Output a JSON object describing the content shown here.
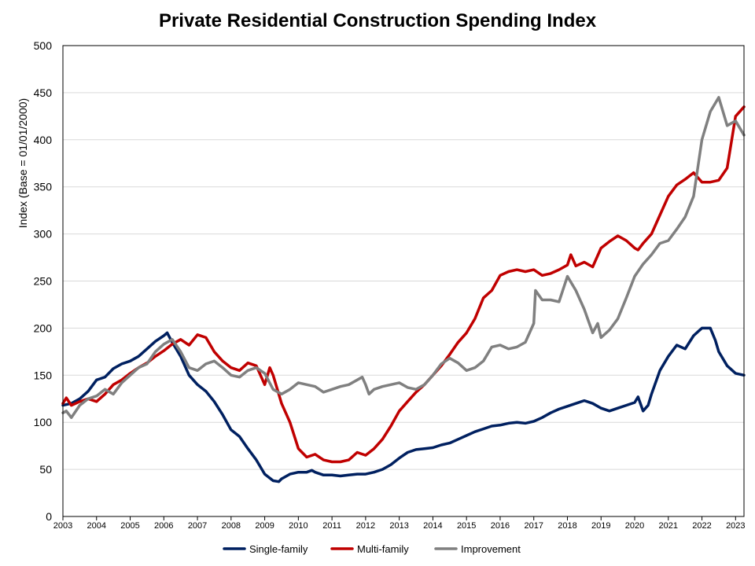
{
  "chart_data": {
    "type": "line",
    "title": "Private Residential Construction Spending Index",
    "ylabel": "Index  (Base = 01/01/2000)",
    "xlabel": "",
    "ylim": [
      0,
      500
    ],
    "yticks": [
      0,
      50,
      100,
      150,
      200,
      250,
      300,
      350,
      400,
      450,
      500
    ],
    "xlim": [
      2003.0,
      2023.25
    ],
    "xticks": [
      "2003",
      "2004",
      "2005",
      "2006",
      "2007",
      "2008",
      "2009",
      "2010",
      "2011",
      "2012",
      "2013",
      "2014",
      "2015",
      "2016",
      "2017",
      "2018",
      "2019",
      "2020",
      "2021",
      "2022",
      "2023"
    ],
    "grid": true,
    "legend_position": "bottom-center",
    "series": [
      {
        "name": "Single-family",
        "color": "#002060",
        "x": [
          2003.0,
          2003.25,
          2003.5,
          2003.75,
          2004.0,
          2004.25,
          2004.5,
          2004.75,
          2005.0,
          2005.25,
          2005.5,
          2005.75,
          2006.0,
          2006.1,
          2006.25,
          2006.5,
          2006.75,
          2007.0,
          2007.25,
          2007.5,
          2007.75,
          2008.0,
          2008.25,
          2008.5,
          2008.75,
          2009.0,
          2009.25,
          2009.42,
          2009.5,
          2009.75,
          2010.0,
          2010.25,
          2010.4,
          2010.5,
          2010.75,
          2011.0,
          2011.25,
          2011.5,
          2011.75,
          2012.0,
          2012.25,
          2012.5,
          2012.75,
          2013.0,
          2013.25,
          2013.5,
          2013.75,
          2014.0,
          2014.25,
          2014.5,
          2014.75,
          2015.0,
          2015.25,
          2015.5,
          2015.75,
          2016.0,
          2016.25,
          2016.5,
          2016.75,
          2017.0,
          2017.25,
          2017.5,
          2017.75,
          2018.0,
          2018.25,
          2018.5,
          2018.75,
          2019.0,
          2019.25,
          2019.5,
          2019.75,
          2020.0,
          2020.1,
          2020.25,
          2020.4,
          2020.5,
          2020.75,
          2021.0,
          2021.25,
          2021.5,
          2021.75,
          2022.0,
          2022.25,
          2022.4,
          2022.5,
          2022.75,
          2023.0,
          2023.25
        ],
        "values": [
          118,
          120,
          125,
          133,
          145,
          148,
          157,
          162,
          165,
          170,
          178,
          186,
          192,
          195,
          185,
          170,
          150,
          140,
          133,
          122,
          108,
          92,
          85,
          72,
          60,
          45,
          38,
          37,
          40,
          45,
          47,
          47,
          49,
          47,
          44,
          44,
          43,
          44,
          45,
          45,
          47,
          50,
          55,
          62,
          68,
          71,
          72,
          73,
          76,
          78,
          82,
          86,
          90,
          93,
          96,
          97,
          99,
          100,
          99,
          101,
          105,
          110,
          114,
          117,
          120,
          123,
          120,
          115,
          112,
          115,
          118,
          121,
          127,
          112,
          118,
          130,
          155,
          170,
          182,
          178,
          192,
          200,
          200,
          187,
          175,
          160,
          152,
          150
        ]
      },
      {
        "name": "Multi-family",
        "color": "#c00000",
        "x": [
          2003.0,
          2003.1,
          2003.25,
          2003.5,
          2003.75,
          2004.0,
          2004.25,
          2004.5,
          2004.75,
          2005.0,
          2005.25,
          2005.5,
          2005.75,
          2006.0,
          2006.25,
          2006.5,
          2006.75,
          2007.0,
          2007.25,
          2007.5,
          2007.75,
          2008.0,
          2008.25,
          2008.5,
          2008.75,
          2009.0,
          2009.15,
          2009.25,
          2009.5,
          2009.75,
          2010.0,
          2010.25,
          2010.5,
          2010.75,
          2011.0,
          2011.25,
          2011.5,
          2011.75,
          2012.0,
          2012.25,
          2012.5,
          2012.75,
          2013.0,
          2013.25,
          2013.5,
          2013.75,
          2014.0,
          2014.25,
          2014.5,
          2014.75,
          2015.0,
          2015.25,
          2015.5,
          2015.75,
          2016.0,
          2016.25,
          2016.5,
          2016.75,
          2017.0,
          2017.25,
          2017.5,
          2017.75,
          2018.0,
          2018.1,
          2018.25,
          2018.5,
          2018.75,
          2019.0,
          2019.25,
          2019.5,
          2019.75,
          2020.0,
          2020.1,
          2020.25,
          2020.5,
          2020.75,
          2021.0,
          2021.25,
          2021.5,
          2021.75,
          2022.0,
          2022.25,
          2022.5,
          2022.75,
          2023.0,
          2023.25
        ],
        "values": [
          120,
          126,
          118,
          122,
          125,
          122,
          130,
          140,
          145,
          152,
          158,
          163,
          170,
          176,
          183,
          188,
          182,
          193,
          190,
          175,
          165,
          158,
          155,
          163,
          160,
          140,
          158,
          150,
          120,
          100,
          72,
          63,
          66,
          60,
          58,
          58,
          60,
          68,
          65,
          72,
          82,
          96,
          112,
          122,
          132,
          140,
          150,
          160,
          172,
          185,
          195,
          210,
          232,
          240,
          256,
          260,
          262,
          260,
          262,
          256,
          258,
          262,
          267,
          278,
          266,
          270,
          265,
          285,
          292,
          298,
          293,
          285,
          283,
          290,
          300,
          320,
          340,
          352,
          358,
          365,
          355,
          355,
          357,
          370,
          425,
          435
        ]
      },
      {
        "name": "Improvement",
        "color": "#808080",
        "x": [
          2003.0,
          2003.1,
          2003.25,
          2003.5,
          2003.75,
          2004.0,
          2004.25,
          2004.5,
          2004.75,
          2005.0,
          2005.25,
          2005.5,
          2005.75,
          2006.0,
          2006.25,
          2006.5,
          2006.75,
          2007.0,
          2007.25,
          2007.5,
          2007.75,
          2008.0,
          2008.25,
          2008.5,
          2008.75,
          2009.0,
          2009.25,
          2009.5,
          2009.75,
          2010.0,
          2010.25,
          2010.5,
          2010.75,
          2011.0,
          2011.25,
          2011.5,
          2011.75,
          2011.9,
          2012.0,
          2012.1,
          2012.25,
          2012.5,
          2012.75,
          2013.0,
          2013.25,
          2013.5,
          2013.75,
          2014.0,
          2014.25,
          2014.5,
          2014.75,
          2015.0,
          2015.25,
          2015.5,
          2015.75,
          2016.0,
          2016.25,
          2016.5,
          2016.75,
          2017.0,
          2017.05,
          2017.25,
          2017.5,
          2017.75,
          2018.0,
          2018.25,
          2018.5,
          2018.75,
          2018.9,
          2019.0,
          2019.25,
          2019.5,
          2019.75,
          2020.0,
          2020.25,
          2020.5,
          2020.75,
          2021.0,
          2021.25,
          2021.5,
          2021.75,
          2022.0,
          2022.25,
          2022.5,
          2022.75,
          2023.0,
          2023.25
        ],
        "values": [
          110,
          112,
          105,
          118,
          125,
          128,
          135,
          130,
          142,
          150,
          158,
          162,
          175,
          183,
          188,
          175,
          158,
          155,
          162,
          165,
          158,
          150,
          148,
          155,
          158,
          152,
          135,
          130,
          135,
          142,
          140,
          138,
          132,
          135,
          138,
          140,
          145,
          148,
          140,
          130,
          135,
          138,
          140,
          142,
          137,
          135,
          140,
          150,
          162,
          168,
          163,
          155,
          158,
          165,
          180,
          182,
          178,
          180,
          185,
          205,
          240,
          230,
          230,
          228,
          255,
          240,
          220,
          195,
          205,
          190,
          198,
          210,
          232,
          255,
          268,
          278,
          290,
          293,
          305,
          318,
          340,
          400,
          430,
          445,
          415,
          420,
          405
        ]
      }
    ]
  }
}
